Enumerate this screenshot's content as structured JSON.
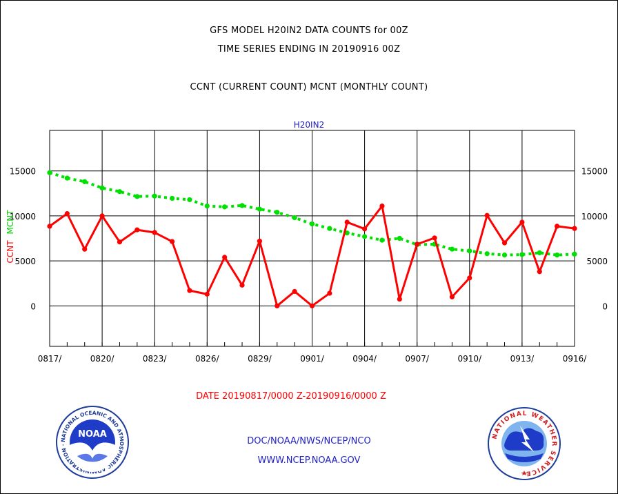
{
  "header": {
    "title_line1": "GFS MODEL H20IN2 DATA COUNTS for 00Z",
    "title_line2": "TIME SERIES ENDING IN 20190916 00Z",
    "subtitle": "CCNT (CURRENT COUNT) MCNT (MONTHLY COUNT)"
  },
  "footer": {
    "org_line": "DOC/NOAA/NWS/NCEP/NCO",
    "url_line": "WWW.NCEP.NOAA.GOV",
    "noaa_logo_text": "NOAA",
    "noaa_ring_text": "NATIONAL OCEANIC AND ATMOSPHERIC ADMINISTRATION · U.S. DEPARTMENT OF COMMERCE ·",
    "nws_ring_text": "NATIONAL WEATHER SERVICE"
  },
  "colors": {
    "ccnt": "#ff0000",
    "mcnt": "#00e000",
    "title": "#1e1ec8",
    "date_range": "#ff0000"
  },
  "chart_data": {
    "type": "line",
    "title": "H20IN2",
    "xlabel": "DATE 20190817/0000 Z-20190916/0000 Z",
    "ylabel_parts": [
      "CCNT",
      "MCNT"
    ],
    "ylim": [
      -4500,
      19500
    ],
    "yticks": [
      0,
      5000,
      10000,
      15000
    ],
    "ytick_labels": [
      "0",
      "5000",
      "10000",
      "15000"
    ],
    "xtick_labels": [
      "0817/",
      "0820/",
      "0823/",
      "0826/",
      "0829/",
      "0901/",
      "0904/",
      "0907/",
      "0910/",
      "0913/",
      "0916/"
    ],
    "grid": true,
    "series": [
      {
        "name": "CCNT",
        "style": "solid",
        "values": [
          8850,
          10250,
          6300,
          10000,
          7100,
          8450,
          8150,
          7150,
          1700,
          1300,
          5400,
          2300,
          7200,
          0,
          1600,
          0,
          1400,
          9300,
          8550,
          11100,
          750,
          6850,
          7550,
          1000,
          3100,
          10050,
          7000,
          9300,
          3800,
          8850,
          8600
        ]
      },
      {
        "name": "MCNT",
        "style": "dotted",
        "values": [
          14800,
          14200,
          13800,
          13100,
          12700,
          12150,
          12200,
          11950,
          11800,
          11100,
          11000,
          11150,
          10750,
          10400,
          9800,
          9100,
          8600,
          8100,
          7700,
          7300,
          7500,
          6800,
          6850,
          6300,
          6100,
          5800,
          5650,
          5700,
          5900,
          5650,
          5750
        ]
      }
    ]
  }
}
